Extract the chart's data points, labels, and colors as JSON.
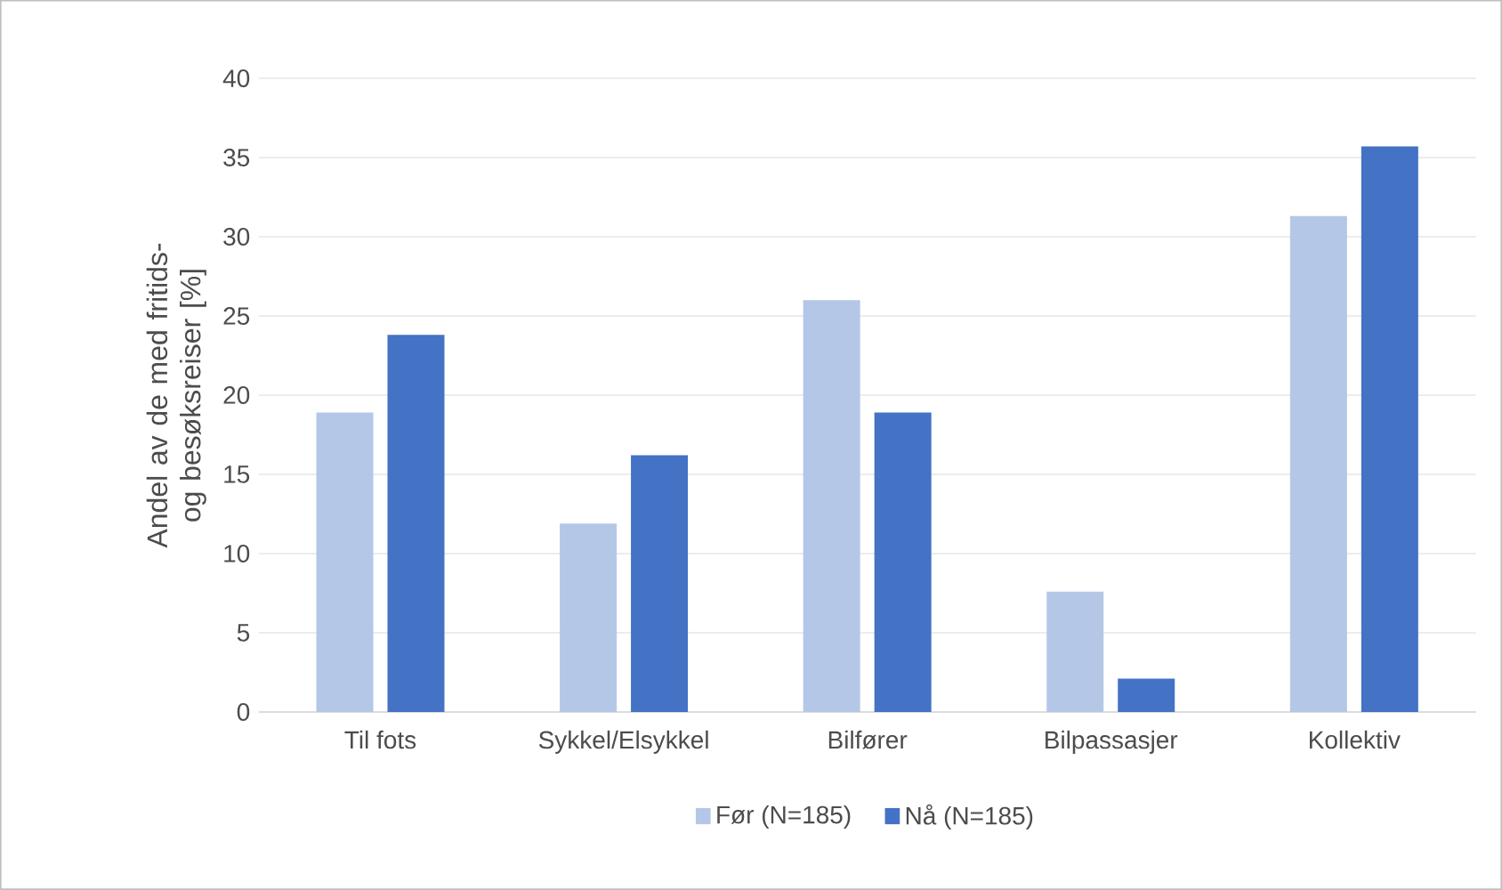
{
  "chart_data": {
    "type": "bar",
    "ylabel": "Andel av de med fritids- og besøksreiser [%]",
    "categories": [
      "Til fots",
      "Sykkel/Elsykkel",
      "Bilfører",
      "Bilpassasjer",
      "Kollektiv"
    ],
    "series": [
      {
        "name": "Før (N=185)",
        "color": "#b4c7e7",
        "values": [
          18.9,
          11.9,
          26.0,
          7.6,
          31.3
        ]
      },
      {
        "name": "Nå (N=185)",
        "color": "#4472c4",
        "values": [
          23.8,
          16.2,
          18.9,
          2.1,
          35.7
        ]
      }
    ],
    "ylim": [
      0,
      40
    ],
    "yticks": [
      0,
      5,
      10,
      15,
      20,
      25,
      30,
      35,
      40
    ],
    "grid": "y",
    "legend": "bottom"
  }
}
